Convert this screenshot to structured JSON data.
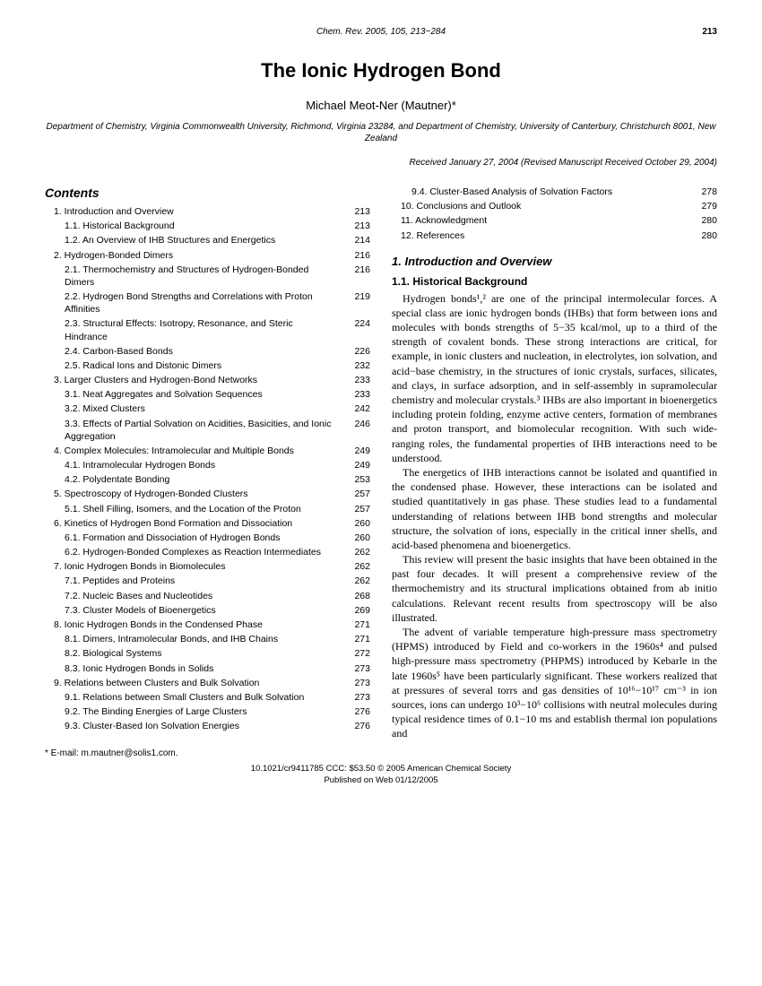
{
  "header": {
    "journal": "Chem. Rev. 2005, 105, 213−284",
    "page": "213"
  },
  "title": "The Ionic Hydrogen Bond",
  "author": "Michael Meot-Ner (Mautner)*",
  "affiliation": "Department of Chemistry, Virginia Commonwealth University, Richmond, Virginia 23284, and Department of Chemistry, University of Canterbury, Christchurch 8001, New Zealand",
  "received": "Received January 27, 2004 (Revised Manuscript Received October 29, 2004)",
  "contentsLabel": "Contents",
  "tocLeft": [
    {
      "lvl": 1,
      "label": "1. Introduction and Overview",
      "pg": "213"
    },
    {
      "lvl": 2,
      "label": "1.1. Historical Background",
      "pg": "213"
    },
    {
      "lvl": 2,
      "label": "1.2. An Overview of IHB Structures and Energetics",
      "pg": "214"
    },
    {
      "lvl": 1,
      "label": "2. Hydrogen-Bonded Dimers",
      "pg": "216"
    },
    {
      "lvl": 2,
      "label": "2.1. Thermochemistry and Structures of Hydrogen-Bonded Dimers",
      "pg": "216"
    },
    {
      "lvl": 2,
      "label": "2.2. Hydrogen Bond Strengths and Correlations with Proton Affinities",
      "pg": "219"
    },
    {
      "lvl": 2,
      "label": "2.3. Structural Effects: Isotropy, Resonance, and Steric Hindrance",
      "pg": "224"
    },
    {
      "lvl": 2,
      "label": "2.4. Carbon-Based Bonds",
      "pg": "226"
    },
    {
      "lvl": 2,
      "label": "2.5. Radical Ions and Distonic Dimers",
      "pg": "232"
    },
    {
      "lvl": 1,
      "label": "3. Larger Clusters and Hydrogen-Bond Networks",
      "pg": "233"
    },
    {
      "lvl": 2,
      "label": "3.1. Neat Aggregates and Solvation Sequences",
      "pg": "233"
    },
    {
      "lvl": 2,
      "label": "3.2. Mixed Clusters",
      "pg": "242"
    },
    {
      "lvl": 2,
      "label": "3.3. Effects of Partial Solvation on Acidities, Basicities, and Ionic Aggregation",
      "pg": "246"
    },
    {
      "lvl": 1,
      "label": "4. Complex Molecules: Intramolecular and Multiple Bonds",
      "pg": "249"
    },
    {
      "lvl": 2,
      "label": "4.1. Intramolecular Hydrogen Bonds",
      "pg": "249"
    },
    {
      "lvl": 2,
      "label": "4.2. Polydentate Bonding",
      "pg": "253"
    },
    {
      "lvl": 1,
      "label": "5. Spectroscopy of Hydrogen-Bonded Clusters",
      "pg": "257"
    },
    {
      "lvl": 2,
      "label": "5.1. Shell Filling, Isomers, and the Location of the Proton",
      "pg": "257"
    },
    {
      "lvl": 1,
      "label": "6. Kinetics of Hydrogen Bond Formation and Dissociation",
      "pg": "260"
    },
    {
      "lvl": 2,
      "label": "6.1. Formation and Dissociation of Hydrogen Bonds",
      "pg": "260"
    },
    {
      "lvl": 2,
      "label": "6.2. Hydrogen-Bonded Complexes as Reaction Intermediates",
      "pg": "262"
    },
    {
      "lvl": 1,
      "label": "7. Ionic Hydrogen Bonds in Biomolecules",
      "pg": "262"
    },
    {
      "lvl": 2,
      "label": "7.1. Peptides and Proteins",
      "pg": "262"
    },
    {
      "lvl": 2,
      "label": "7.2. Nucleic Bases and Nucleotides",
      "pg": "268"
    },
    {
      "lvl": 2,
      "label": "7.3. Cluster Models of Bioenergetics",
      "pg": "269"
    },
    {
      "lvl": 1,
      "label": "8. Ionic Hydrogen Bonds in the Condensed Phase",
      "pg": "271"
    },
    {
      "lvl": 2,
      "label": "8.1. Dimers, Intramolecular Bonds, and IHB Chains",
      "pg": "271"
    },
    {
      "lvl": 2,
      "label": "8.2. Biological Systems",
      "pg": "272"
    },
    {
      "lvl": 2,
      "label": "8.3. Ionic Hydrogen Bonds in Solids",
      "pg": "273"
    },
    {
      "lvl": 1,
      "label": "9. Relations between Clusters and Bulk Solvation",
      "pg": "273"
    },
    {
      "lvl": 2,
      "label": "9.1. Relations between Small Clusters and Bulk Solvation",
      "pg": "273"
    },
    {
      "lvl": 2,
      "label": "9.2. The Binding Energies of Large Clusters",
      "pg": "276"
    },
    {
      "lvl": 2,
      "label": "9.3. Cluster-Based Ion Solvation Energies",
      "pg": "276"
    }
  ],
  "tocRight": [
    {
      "lvl": 2,
      "label": "9.4. Cluster-Based Analysis of Solvation Factors",
      "pg": "278"
    },
    {
      "lvl": 1,
      "label": "10. Conclusions and Outlook",
      "pg": "279"
    },
    {
      "lvl": 1,
      "label": "11. Acknowledgment",
      "pg": "280"
    },
    {
      "lvl": 1,
      "label": "12. References",
      "pg": "280"
    }
  ],
  "section1": "1. Introduction and Overview",
  "section11": "1.1. Historical Background",
  "para1": "Hydrogen bonds¹,² are one of the principal intermolecular forces. A special class are ionic hydrogen bonds (IHBs) that form between ions and molecules with bonds strengths of 5−35 kcal/mol, up to a third of the strength of covalent bonds. These strong interactions are critical, for example, in ionic clusters and nucleation, in electrolytes, ion solvation, and acid−base chemistry, in the structures of ionic crystals, surfaces, silicates, and clays, in surface adsorption, and in self-assembly in supramolecular chemistry and molecular crystals.³ IHBs are also important in bioenergetics including protein folding, enzyme active centers, formation of membranes and proton transport, and biomolecular recognition. With such wide-ranging roles, the fundamental properties of IHB interactions need to be understood.",
  "para2": "The energetics of IHB interactions cannot be isolated and quantified in the condensed phase. However, these interactions can be isolated and studied quantitatively in gas phase. These studies lead to a fundamental understanding of relations between IHB bond strengths and molecular structure, the solvation of ions, especially in the critical inner shells, and acid-based phenomena and bioenergetics.",
  "para3": "This review will present the basic insights that have been obtained in the past four decades. It will present a comprehensive review of the thermochemistry and its structural implications obtained from ab initio calculations. Relevant recent results from spectroscopy will be also illustrated.",
  "para4": "The advent of variable temperature high-pressure mass spectrometry (HPMS) introduced by Field and co-workers in the 1960s⁴ and pulsed high-pressure mass spectrometry (PHPMS) introduced by Kebarle in the late 1960s⁵ have been particularly significant. These workers realized that at pressures of several torrs and gas densities of 10¹⁶−10¹⁷ cm⁻³ in ion sources, ions can undergo 10³−10⁶ collisions with neutral molecules during typical residence times of 0.1−10 ms and establish thermal ion populations and",
  "email": "* E-mail: m.mautner@solis1.com.",
  "footer1": "10.1021/cr9411785 CCC: $53.50   © 2005 American Chemical Society",
  "footer2": "Published on Web 01/12/2005"
}
